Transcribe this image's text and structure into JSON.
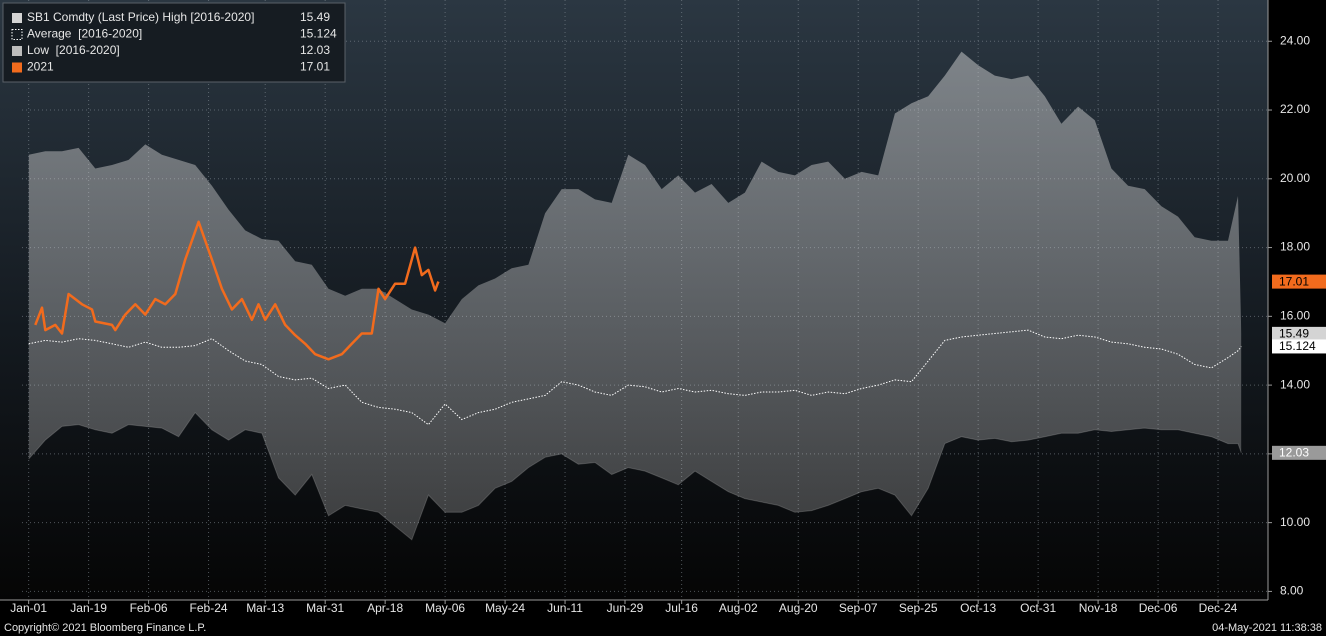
{
  "chart_data": {
    "type": "line",
    "x": [
      0,
      5,
      10,
      15,
      20,
      25,
      30,
      35,
      40,
      45,
      50,
      55,
      60,
      65,
      70,
      75,
      80,
      85,
      90,
      95,
      100,
      105,
      110,
      115,
      120,
      125,
      130,
      135,
      140,
      145,
      150,
      155,
      160,
      165,
      170,
      175,
      180,
      185,
      190,
      195,
      200,
      205,
      210,
      215,
      220,
      225,
      230,
      235,
      240,
      245,
      250,
      255,
      260,
      265,
      270,
      275,
      280,
      285,
      290,
      295,
      300,
      305,
      310,
      315,
      320,
      325,
      330,
      335,
      340,
      345,
      350,
      355,
      360,
      363,
      364
    ],
    "series": [
      {
        "name": "SB1 Comdty (Last Price) High [2016-2020]",
        "color": "#d4d4d4",
        "role": "band-top",
        "values": [
          20.7,
          20.8,
          20.8,
          20.9,
          20.3,
          20.4,
          20.55,
          21.0,
          20.7,
          20.55,
          20.4,
          19.8,
          19.1,
          18.5,
          18.25,
          18.2,
          17.6,
          17.5,
          16.8,
          16.6,
          16.8,
          16.8,
          16.5,
          16.2,
          16.05,
          15.8,
          16.5,
          16.9,
          17.1,
          17.4,
          17.5,
          19.0,
          19.7,
          19.7,
          19.4,
          19.3,
          20.7,
          20.4,
          19.7,
          20.1,
          19.6,
          19.85,
          19.3,
          19.6,
          20.5,
          20.2,
          20.1,
          20.4,
          20.5,
          20.0,
          20.2,
          20.1,
          21.9,
          22.2,
          22.4,
          23.0,
          23.7,
          23.3,
          23.0,
          22.9,
          23.0,
          22.4,
          21.6,
          22.1,
          21.7,
          20.3,
          19.8,
          19.7,
          19.2,
          18.9,
          18.3,
          18.2,
          18.2,
          19.5,
          15.49
        ]
      },
      {
        "name": "Average  [2016-2020]",
        "color": "#ffffff",
        "role": "dotted",
        "values": [
          15.2,
          15.3,
          15.25,
          15.35,
          15.3,
          15.2,
          15.1,
          15.25,
          15.1,
          15.1,
          15.15,
          15.35,
          15.0,
          14.7,
          14.6,
          14.25,
          14.15,
          14.2,
          13.9,
          14.0,
          13.5,
          13.35,
          13.3,
          13.2,
          12.85,
          13.45,
          13.0,
          13.2,
          13.3,
          13.5,
          13.6,
          13.7,
          14.1,
          14.0,
          13.8,
          13.7,
          14.0,
          13.95,
          13.8,
          13.9,
          13.8,
          13.85,
          13.75,
          13.7,
          13.8,
          13.8,
          13.85,
          13.7,
          13.8,
          13.75,
          13.9,
          14.0,
          14.15,
          14.1,
          14.7,
          15.3,
          15.4,
          15.45,
          15.5,
          15.55,
          15.6,
          15.4,
          15.35,
          15.45,
          15.4,
          15.25,
          15.2,
          15.1,
          15.05,
          14.9,
          14.6,
          14.5,
          14.8,
          15.0,
          15.124
        ]
      },
      {
        "name": "Low  [2016-2020]",
        "color": "#bdbdbd",
        "role": "band-bottom",
        "values": [
          11.85,
          12.4,
          12.8,
          12.85,
          12.7,
          12.6,
          12.85,
          12.8,
          12.75,
          12.5,
          13.2,
          12.7,
          12.4,
          12.7,
          12.6,
          11.3,
          10.8,
          11.4,
          10.2,
          10.5,
          10.4,
          10.3,
          9.9,
          9.5,
          10.8,
          10.3,
          10.3,
          10.5,
          11.0,
          11.2,
          11.6,
          11.9,
          12.0,
          11.7,
          11.75,
          11.4,
          11.6,
          11.5,
          11.3,
          11.1,
          11.5,
          11.2,
          10.9,
          10.7,
          10.6,
          10.5,
          10.3,
          10.35,
          10.5,
          10.7,
          10.9,
          11.0,
          10.8,
          10.2,
          11.0,
          12.3,
          12.5,
          12.4,
          12.45,
          12.35,
          12.4,
          12.5,
          12.6,
          12.6,
          12.7,
          12.65,
          12.7,
          12.75,
          12.7,
          12.7,
          12.6,
          12.5,
          12.3,
          12.3,
          12.03
        ]
      },
      {
        "name": "2021",
        "color": "#f26b1d",
        "role": "solid",
        "x": [
          2,
          4,
          5,
          8,
          10,
          12,
          16,
          19,
          20,
          25,
          26,
          29,
          32,
          35,
          38,
          41,
          44,
          47,
          51,
          55,
          58,
          61,
          64,
          67,
          69,
          71,
          74,
          77,
          80,
          83,
          86,
          90,
          94,
          97,
          100,
          103,
          105,
          107,
          110,
          113,
          116,
          118,
          120,
          122,
          123
        ],
        "values": [
          15.75,
          16.25,
          15.6,
          15.75,
          15.5,
          16.65,
          16.35,
          16.2,
          15.85,
          15.75,
          15.6,
          16.05,
          16.35,
          16.05,
          16.5,
          16.35,
          16.65,
          17.65,
          18.75,
          17.65,
          16.8,
          16.2,
          16.5,
          15.9,
          16.35,
          15.9,
          16.35,
          15.75,
          15.45,
          15.2,
          14.9,
          14.75,
          14.9,
          15.2,
          15.5,
          15.5,
          16.8,
          16.5,
          16.95,
          16.95,
          18.0,
          17.2,
          17.35,
          16.75,
          17.01
        ]
      }
    ],
    "xlim": [
      -2,
      372
    ],
    "xticks": [
      {
        "value": 0,
        "label": "Jan-01"
      },
      {
        "value": 18,
        "label": "Jan-19"
      },
      {
        "value": 36,
        "label": "Feb-06"
      },
      {
        "value": 54,
        "label": "Feb-24"
      },
      {
        "value": 71,
        "label": "Mar-13"
      },
      {
        "value": 89,
        "label": "Mar-31"
      },
      {
        "value": 107,
        "label": "Apr-18"
      },
      {
        "value": 125,
        "label": "May-06"
      },
      {
        "value": 143,
        "label": "May-24"
      },
      {
        "value": 161,
        "label": "Jun-11"
      },
      {
        "value": 179,
        "label": "Jun-29"
      },
      {
        "value": 196,
        "label": "Jul-16"
      },
      {
        "value": 213,
        "label": "Aug-02"
      },
      {
        "value": 231,
        "label": "Aug-20"
      },
      {
        "value": 249,
        "label": "Sep-07"
      },
      {
        "value": 267,
        "label": "Sep-25"
      },
      {
        "value": 285,
        "label": "Oct-13"
      },
      {
        "value": 303,
        "label": "Oct-31"
      },
      {
        "value": 321,
        "label": "Nov-18"
      },
      {
        "value": 339,
        "label": "Dec-06"
      },
      {
        "value": 357,
        "label": "Dec-24"
      }
    ],
    "ylim": [
      7.75,
      25.2
    ],
    "yticks": [
      {
        "value": 8,
        "label": "8.00"
      },
      {
        "value": 10,
        "label": "10.00"
      },
      {
        "value": 12,
        "label": "12.00"
      },
      {
        "value": 14,
        "label": "14.00"
      },
      {
        "value": 16,
        "label": "16.00"
      },
      {
        "value": 18,
        "label": "18.00"
      },
      {
        "value": 20,
        "label": "20.00"
      },
      {
        "value": 22,
        "label": "22.00"
      },
      {
        "value": 24,
        "label": "24.00"
      }
    ],
    "grid": true,
    "legend": "top-left",
    "y_axis_side": "right"
  },
  "footer": {
    "copyright": "Copyright© 2021 Bloomberg Finance L.P.",
    "timestamp": "04-May-2021 11:38:38"
  }
}
